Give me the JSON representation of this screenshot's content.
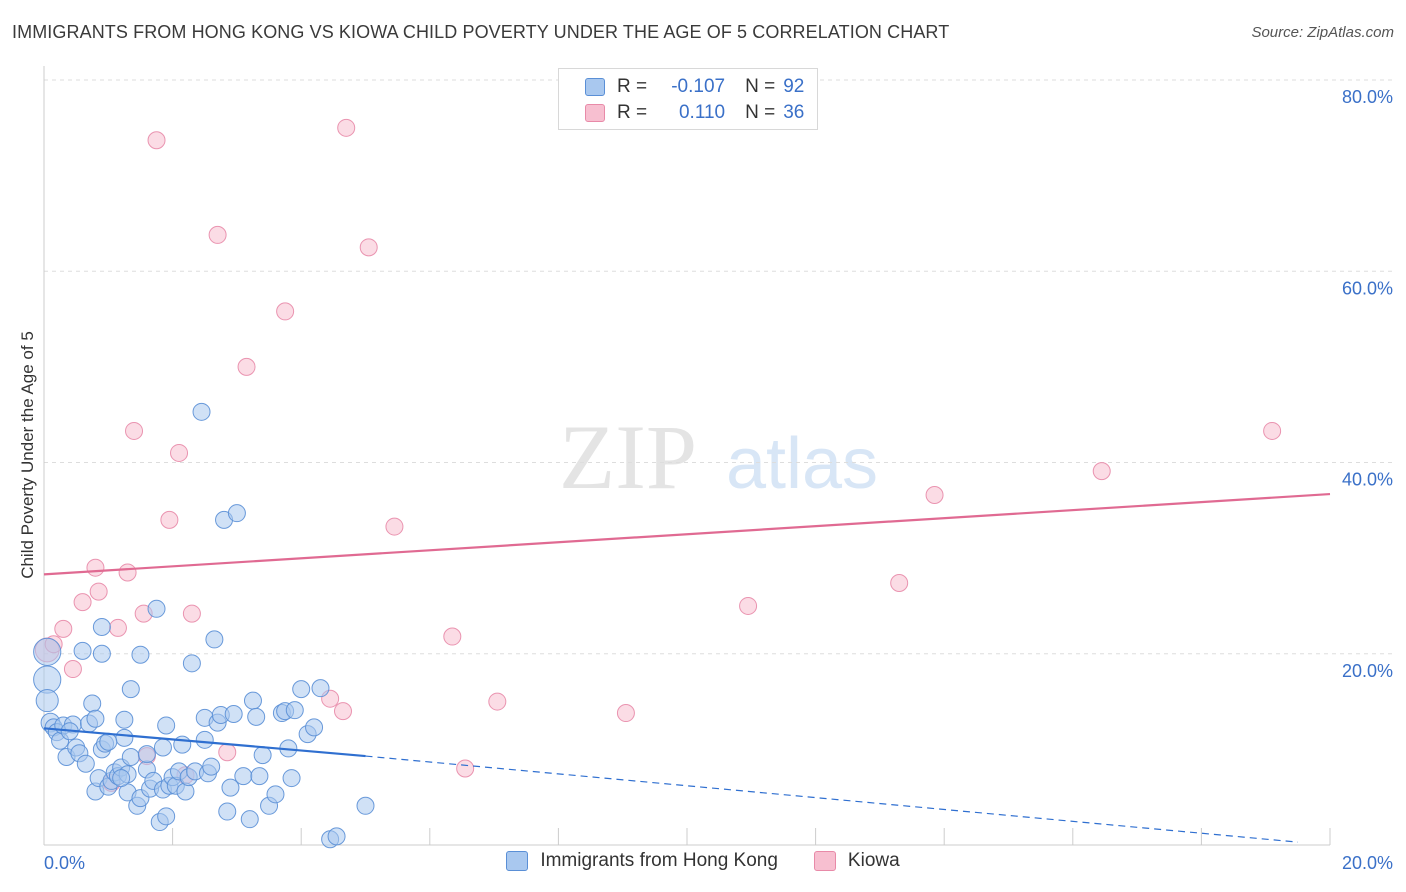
{
  "title": "IMMIGRANTS FROM HONG KONG VS KIOWA CHILD POVERTY UNDER THE AGE OF 5 CORRELATION CHART",
  "source": "Source: ZipAtlas.com",
  "watermark": {
    "zip": "ZIP",
    "atlas": "atlas"
  },
  "legend_top": [
    {
      "r_label": "R =",
      "r_value": "-0.107",
      "n_label": "N =",
      "n_value": "92"
    },
    {
      "r_label": "R =",
      "r_value": "0.110",
      "n_label": "N =",
      "n_value": "36"
    }
  ],
  "colors": {
    "blue_fill": "#a9c8ef",
    "blue_stroke": "#5a8fd6",
    "blue_line": "#2f6fd0",
    "pink_fill": "#f7bfd0",
    "pink_stroke": "#e88aa8",
    "pink_line": "#e06a92",
    "axis_text": "#3a70c8",
    "grid": "#dddddd"
  },
  "chart_data": {
    "type": "scatter",
    "title": "IMMIGRANTS FROM HONG KONG VS KIOWA CHILD POVERTY UNDER THE AGE OF 5 CORRELATION CHART",
    "xlabel": "",
    "ylabel": "Child Poverty Under the Age of 5",
    "xlim": [
      0,
      20
    ],
    "ylim": [
      0,
      80
    ],
    "x_tick_labels": [
      "0.0%",
      "20.0%"
    ],
    "y_ticks": [
      20,
      40,
      60,
      80
    ],
    "y_tick_labels": [
      "20.0%",
      "40.0%",
      "60.0%",
      "80.0%"
    ],
    "grid": true,
    "series": [
      {
        "name": "Immigrants from Hong Kong",
        "r": -0.107,
        "n": 92,
        "trend": {
          "solid": [
            [
              0,
              12.2
            ],
            [
              5,
              9.3
            ]
          ],
          "dashed": [
            [
              5,
              9.3
            ],
            [
              19.5,
              0.3
            ]
          ]
        },
        "points": [
          [
            0.05,
            20.2,
            1.6
          ],
          [
            0.05,
            17.3,
            1.6
          ],
          [
            0.05,
            15.1,
            1.3
          ],
          [
            0.1,
            12.8,
            1.1
          ],
          [
            0.15,
            12.3,
            1.0
          ],
          [
            0.2,
            11.8,
            1.0
          ],
          [
            0.25,
            10.9,
            1.0
          ],
          [
            0.3,
            12.5,
            1.0
          ],
          [
            0.35,
            9.2,
            1.0
          ],
          [
            0.45,
            12.6,
            1.0
          ],
          [
            0.5,
            10.2,
            1.0
          ],
          [
            0.55,
            9.6,
            1.0
          ],
          [
            0.6,
            20.3,
            1.0
          ],
          [
            0.65,
            8.5,
            1.0
          ],
          [
            0.7,
            12.7,
            1.0
          ],
          [
            0.75,
            14.8,
            1.0
          ],
          [
            0.8,
            13.2,
            1.0
          ],
          [
            0.8,
            5.6,
            1.0
          ],
          [
            0.85,
            7.0,
            1.0
          ],
          [
            0.9,
            10.0,
            1.0
          ],
          [
            0.9,
            20.0,
            1.0
          ],
          [
            0.9,
            22.8,
            1.0
          ],
          [
            0.95,
            10.6,
            1.0
          ],
          [
            1.0,
            6.1,
            1.0
          ],
          [
            1.05,
            6.7,
            1.0
          ],
          [
            1.1,
            7.6,
            1.0
          ],
          [
            1.15,
            7.2,
            1.0
          ],
          [
            1.2,
            8.1,
            1.0
          ],
          [
            1.25,
            11.2,
            1.0
          ],
          [
            1.25,
            13.1,
            1.0
          ],
          [
            1.3,
            7.4,
            1.0
          ],
          [
            1.3,
            5.5,
            1.0
          ],
          [
            1.35,
            9.2,
            1.0
          ],
          [
            1.35,
            16.3,
            1.0
          ],
          [
            1.45,
            4.1,
            1.0
          ],
          [
            1.5,
            4.9,
            1.0
          ],
          [
            1.5,
            19.9,
            1.0
          ],
          [
            1.6,
            7.9,
            1.0
          ],
          [
            1.6,
            9.5,
            1.0
          ],
          [
            1.65,
            5.9,
            1.0
          ],
          [
            1.7,
            6.7,
            1.0
          ],
          [
            1.75,
            24.7,
            1.0
          ],
          [
            1.8,
            2.4,
            1.0
          ],
          [
            1.85,
            5.8,
            1.0
          ],
          [
            1.85,
            10.2,
            1.0
          ],
          [
            1.9,
            12.5,
            1.0
          ],
          [
            1.9,
            3.0,
            1.0
          ],
          [
            1.95,
            6.2,
            1.0
          ],
          [
            2.0,
            7.1,
            1.0
          ],
          [
            2.05,
            6.2,
            1.0
          ],
          [
            2.1,
            7.7,
            1.0
          ],
          [
            2.15,
            10.5,
            1.0
          ],
          [
            2.2,
            5.6,
            1.0
          ],
          [
            2.25,
            7.1,
            1.0
          ],
          [
            2.3,
            19.0,
            1.0
          ],
          [
            2.35,
            7.7,
            1.0
          ],
          [
            2.45,
            45.3,
            1.0
          ],
          [
            2.5,
            13.3,
            1.0
          ],
          [
            2.55,
            7.5,
            1.0
          ],
          [
            2.6,
            8.2,
            1.0
          ],
          [
            2.65,
            21.5,
            1.0
          ],
          [
            2.7,
            12.8,
            1.0
          ],
          [
            2.75,
            13.6,
            1.0
          ],
          [
            2.8,
            34.0,
            1.0
          ],
          [
            2.85,
            3.5,
            1.0
          ],
          [
            2.9,
            6.0,
            1.0
          ],
          [
            2.95,
            13.7,
            1.0
          ],
          [
            3.0,
            34.7,
            1.0
          ],
          [
            3.1,
            7.2,
            1.0
          ],
          [
            3.2,
            2.7,
            1.0
          ],
          [
            3.25,
            15.1,
            1.0
          ],
          [
            3.3,
            13.4,
            1.0
          ],
          [
            3.35,
            7.2,
            1.0
          ],
          [
            3.4,
            9.4,
            1.0
          ],
          [
            3.5,
            4.1,
            1.0
          ],
          [
            3.6,
            5.3,
            1.0
          ],
          [
            3.7,
            13.8,
            1.0
          ],
          [
            3.75,
            14.0,
            1.0
          ],
          [
            3.8,
            10.1,
            1.0
          ],
          [
            3.85,
            7.0,
            1.0
          ],
          [
            3.9,
            14.1,
            1.0
          ],
          [
            4.0,
            16.3,
            1.0
          ],
          [
            4.1,
            11.6,
            1.0
          ],
          [
            4.2,
            12.3,
            1.0
          ],
          [
            4.3,
            16.4,
            1.0
          ],
          [
            4.45,
            0.6,
            1.0
          ],
          [
            4.55,
            0.9,
            1.0
          ],
          [
            5.0,
            4.1,
            1.0
          ],
          [
            1.2,
            7.0,
            1.0
          ],
          [
            0.4,
            11.9,
            1.0
          ],
          [
            1.0,
            10.8,
            1.0
          ],
          [
            2.5,
            11.0,
            1.0
          ]
        ]
      },
      {
        "name": "Kiowa",
        "r": 0.11,
        "n": 36,
        "trend": {
          "solid": [
            [
              0,
              28.3
            ],
            [
              20,
              36.7
            ]
          ],
          "dashed": []
        },
        "points": [
          [
            0.05,
            20.4,
            1.4
          ],
          [
            0.15,
            21.0,
            1.0
          ],
          [
            0.3,
            22.6,
            1.0
          ],
          [
            0.45,
            18.4,
            1.0
          ],
          [
            0.6,
            25.4,
            1.0
          ],
          [
            0.8,
            29.0,
            1.0
          ],
          [
            0.85,
            26.5,
            1.0
          ],
          [
            1.05,
            6.5,
            1.0
          ],
          [
            1.15,
            22.7,
            1.0
          ],
          [
            1.3,
            28.5,
            1.0
          ],
          [
            1.4,
            43.3,
            1.0
          ],
          [
            1.55,
            24.2,
            1.0
          ],
          [
            1.6,
            9.3,
            1.0
          ],
          [
            1.75,
            73.7,
            1.0
          ],
          [
            1.95,
            34.0,
            1.0
          ],
          [
            2.1,
            41.0,
            1.0
          ],
          [
            2.2,
            7.3,
            1.0
          ],
          [
            2.3,
            24.2,
            1.0
          ],
          [
            2.7,
            63.8,
            1.0
          ],
          [
            2.85,
            9.7,
            1.0
          ],
          [
            3.15,
            50.0,
            1.0
          ],
          [
            3.75,
            55.8,
            1.0
          ],
          [
            4.45,
            15.3,
            1.0
          ],
          [
            4.65,
            14.0,
            1.0
          ],
          [
            4.7,
            75.0,
            1.0
          ],
          [
            5.05,
            62.5,
            1.0
          ],
          [
            5.45,
            33.3,
            1.0
          ],
          [
            6.35,
            21.8,
            1.0
          ],
          [
            6.55,
            8.0,
            1.0
          ],
          [
            7.05,
            15.0,
            1.0
          ],
          [
            9.05,
            13.8,
            1.0
          ],
          [
            10.95,
            25.0,
            1.0
          ],
          [
            13.3,
            27.4,
            1.0
          ],
          [
            13.85,
            36.6,
            1.0
          ],
          [
            16.45,
            39.1,
            1.0
          ],
          [
            19.1,
            43.3,
            1.0
          ]
        ]
      }
    ]
  },
  "legend_bottom": [
    "Immigrants from Hong Kong",
    "Kiowa"
  ]
}
